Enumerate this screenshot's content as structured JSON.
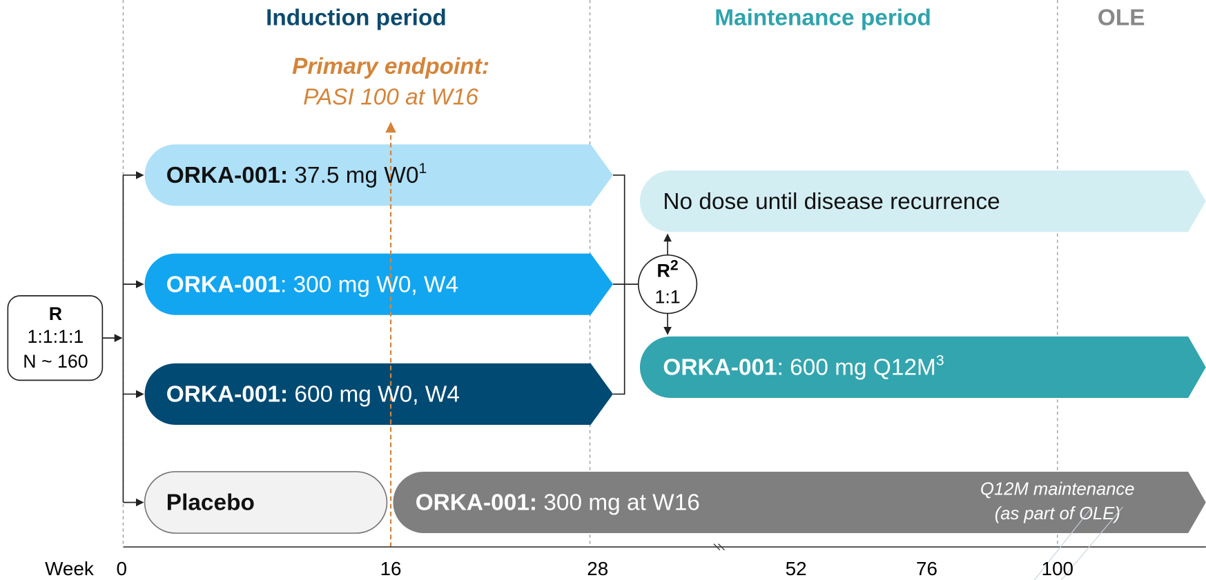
{
  "periods": {
    "induction": "Induction period",
    "maintenance": "Maintenance period",
    "ole": "OLE"
  },
  "primary_endpoint": {
    "title": "Primary endpoint:",
    "detail": "PASI 100 at W16"
  },
  "randomization": {
    "label": "R",
    "ratio": "1:1:1:1",
    "n": "N ~ 160"
  },
  "rerandomization": {
    "label": "R",
    "sup": "2",
    "ratio": "1:1"
  },
  "arms": [
    {
      "bold": "ORKA-001:",
      "text": " 37.5 mg W0",
      "sup": "1"
    },
    {
      "bold": "ORKA-001",
      "text": ": 300 mg W0, W4"
    },
    {
      "bold": "ORKA-001:",
      "text": " 600 mg W0, W4"
    },
    {
      "bold": "Placebo"
    }
  ],
  "maintenance_arms": [
    {
      "text": "No dose until disease recurrence"
    },
    {
      "bold": "ORKA-001",
      "text": ": 600 mg Q12M",
      "sup": "3"
    }
  ],
  "placebo_crossover": {
    "bold": "ORKA-001:",
    "text": " 300 mg at W16",
    "note_1": "Q12M maintenance",
    "note_2": "(as part of OLE)"
  },
  "axis": {
    "label": "Week",
    "ticks": [
      "0",
      "16",
      "28",
      "52",
      "76",
      "100"
    ]
  }
}
